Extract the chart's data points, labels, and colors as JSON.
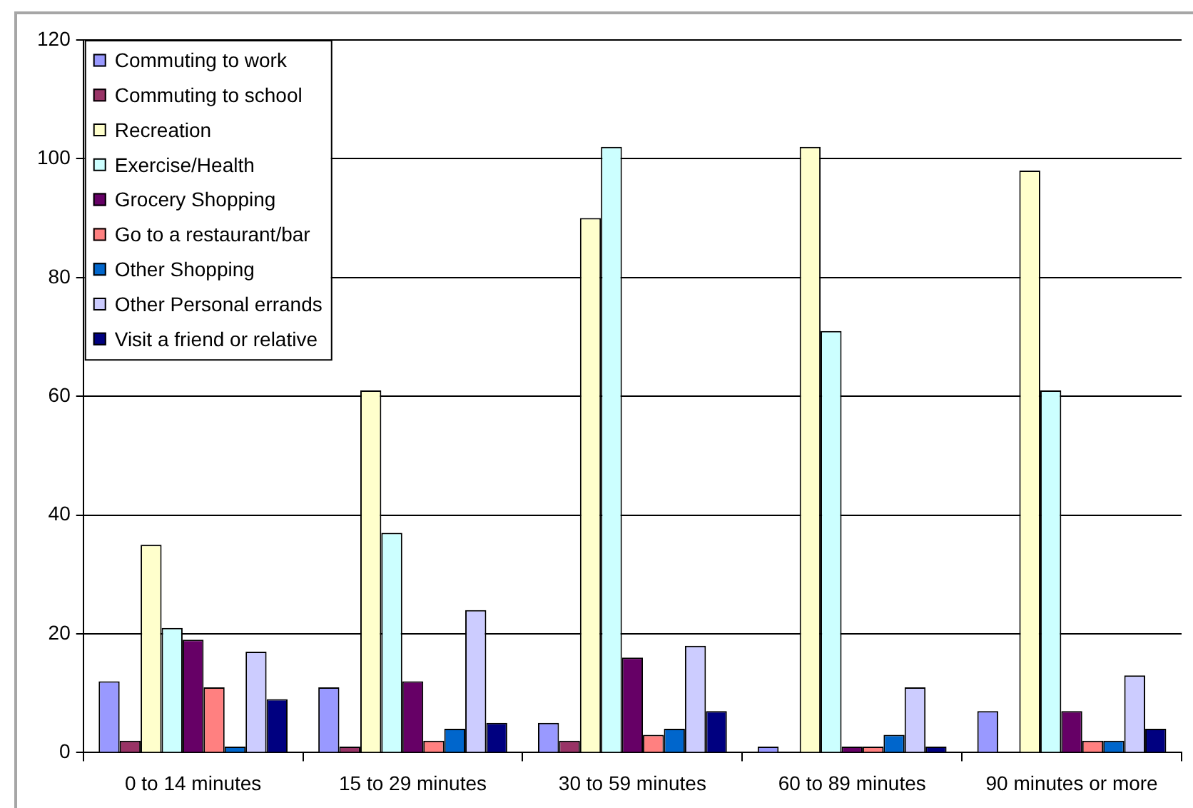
{
  "chart_data": {
    "type": "bar",
    "categories": [
      "0 to 14 minutes",
      "15 to 29 minutes",
      "30 to 59 minutes",
      "60 to 89 minutes",
      "90 minutes or more"
    ],
    "series": [
      {
        "name": "Commuting to work",
        "color": "#9999ff",
        "values": [
          12,
          11,
          5,
          1,
          7
        ]
      },
      {
        "name": "Commuting to school",
        "color": "#993366",
        "values": [
          2,
          1,
          2,
          0,
          0
        ]
      },
      {
        "name": "Recreation",
        "color": "#ffffcc",
        "values": [
          35,
          61,
          90,
          102,
          98
        ]
      },
      {
        "name": "Exercise/Health",
        "color": "#ccffff",
        "values": [
          21,
          37,
          102,
          71,
          61
        ]
      },
      {
        "name": "Grocery Shopping",
        "color": "#660066",
        "values": [
          19,
          12,
          16,
          1,
          7
        ]
      },
      {
        "name": "Go to a restaurant/bar",
        "color": "#ff8080",
        "values": [
          11,
          2,
          3,
          1,
          2
        ]
      },
      {
        "name": "Other Shopping",
        "color": "#0066cc",
        "values": [
          1,
          4,
          4,
          3,
          2
        ]
      },
      {
        "name": "Other Personal errands",
        "color": "#ccccff",
        "values": [
          17,
          24,
          18,
          11,
          13
        ]
      },
      {
        "name": "Visit a friend or relative",
        "color": "#000080",
        "values": [
          9,
          5,
          7,
          1,
          4
        ]
      }
    ],
    "ylim": [
      0,
      120
    ],
    "yticks": [
      0,
      20,
      40,
      60,
      80,
      100,
      120
    ],
    "grid": "y",
    "legend": "top left"
  }
}
